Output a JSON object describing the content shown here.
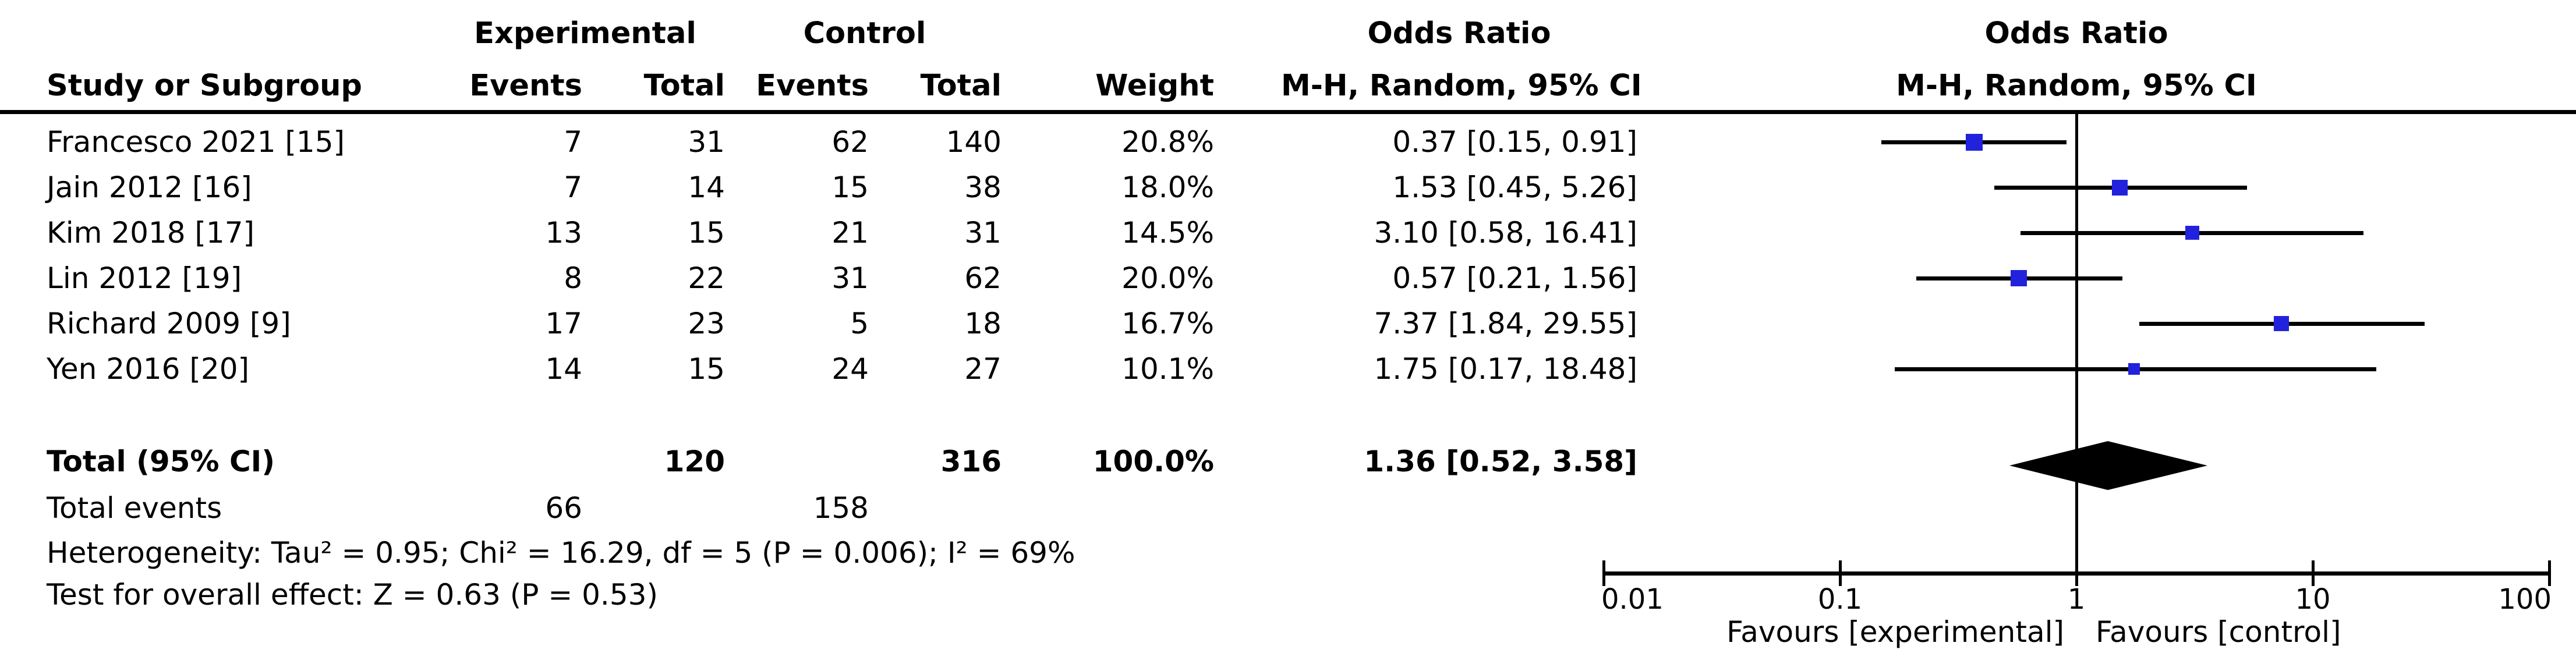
{
  "columns": {
    "group_experimental": "Experimental",
    "group_control": "Control",
    "or_text_header_line1": "Odds Ratio",
    "or_text_header_line2": "M-H, Random, 95% CI",
    "plot_header_line1": "Odds Ratio",
    "plot_header_line2": "M-H, Random, 95% CI",
    "study": "Study or Subgroup",
    "events": "Events",
    "total": "Total",
    "weight": "Weight"
  },
  "studies": [
    {
      "name": "Francesco 2021 [15]",
      "exp_events": "7",
      "exp_total": "31",
      "ctrl_events": "62",
      "ctrl_total": "140",
      "weight": "20.8%",
      "or_ci": "0.37 [0.15, 0.91]"
    },
    {
      "name": "Jain 2012 [16]",
      "exp_events": "7",
      "exp_total": "14",
      "ctrl_events": "15",
      "ctrl_total": "38",
      "weight": "18.0%",
      "or_ci": "1.53 [0.45, 5.26]"
    },
    {
      "name": "Kim 2018 [17]",
      "exp_events": "13",
      "exp_total": "15",
      "ctrl_events": "21",
      "ctrl_total": "31",
      "weight": "14.5%",
      "or_ci": "3.10 [0.58, 16.41]"
    },
    {
      "name": "Lin 2012 [19]",
      "exp_events": "8",
      "exp_total": "22",
      "ctrl_events": "31",
      "ctrl_total": "62",
      "weight": "20.0%",
      "or_ci": "0.57 [0.21, 1.56]"
    },
    {
      "name": "Richard 2009 [9]",
      "exp_events": "17",
      "exp_total": "23",
      "ctrl_events": "5",
      "ctrl_total": "18",
      "weight": "16.7%",
      "or_ci": "7.37 [1.84, 29.55]"
    },
    {
      "name": "Yen 2016 [20]",
      "exp_events": "14",
      "exp_total": "15",
      "ctrl_events": "24",
      "ctrl_total": "27",
      "weight": "10.1%",
      "or_ci": "1.75 [0.17, 18.48]"
    }
  ],
  "totals": {
    "label": "Total (95% CI)",
    "exp_total": "120",
    "ctrl_total": "316",
    "weight": "100.0%",
    "or_ci": "1.36 [0.52, 3.58]",
    "events_label": "Total events",
    "exp_events": "66",
    "ctrl_events": "158"
  },
  "footer": {
    "heterogeneity": "Heterogeneity: Tau² = 0.95; Chi² = 16.29, df = 5 (P = 0.006); I² = 69%",
    "overall_effect": "Test for overall effect: Z = 0.63 (P = 0.53)"
  },
  "axis": {
    "tick_labels": [
      "0.01",
      "0.1",
      "1",
      "10",
      "100"
    ],
    "favours_left": "Favours [experimental]",
    "favours_right": "Favours [control]"
  },
  "colors": {
    "marker_blue": "#2222DD",
    "line_black": "#000000",
    "diamond_black": "#000000",
    "background": "#FFFFFF"
  },
  "chart_data": {
    "type": "scatter",
    "subtype": "forest-plot",
    "title": "Odds Ratio",
    "effect_measure": "M-H, Random, 95% CI",
    "x_scale": "log10",
    "xlim": [
      0.01,
      100
    ],
    "x_ticks": [
      0.01,
      0.1,
      1,
      10,
      100
    ],
    "legend_position": "none",
    "grid": false,
    "points": [
      {
        "study": "Francesco 2021 [15]",
        "or": 0.37,
        "ci_low": 0.15,
        "ci_high": 0.91,
        "weight_pct": 20.8
      },
      {
        "study": "Jain 2012 [16]",
        "or": 1.53,
        "ci_low": 0.45,
        "ci_high": 5.26,
        "weight_pct": 18.0
      },
      {
        "study": "Kim 2018 [17]",
        "or": 3.1,
        "ci_low": 0.58,
        "ci_high": 16.41,
        "weight_pct": 14.5
      },
      {
        "study": "Lin 2012 [19]",
        "or": 0.57,
        "ci_low": 0.21,
        "ci_high": 1.56,
        "weight_pct": 20.0
      },
      {
        "study": "Richard 2009 [9]",
        "or": 7.37,
        "ci_low": 1.84,
        "ci_high": 29.55,
        "weight_pct": 16.7
      },
      {
        "study": "Yen 2016 [20]",
        "or": 1.75,
        "ci_low": 0.17,
        "ci_high": 18.48,
        "weight_pct": 10.1
      }
    ],
    "summary": {
      "label": "Total (95% CI)",
      "or": 1.36,
      "ci_low": 0.52,
      "ci_high": 3.58,
      "weight_pct": 100.0
    },
    "x_axis_labels": {
      "left": "Favours [experimental]",
      "right": "Favours [control]"
    }
  }
}
